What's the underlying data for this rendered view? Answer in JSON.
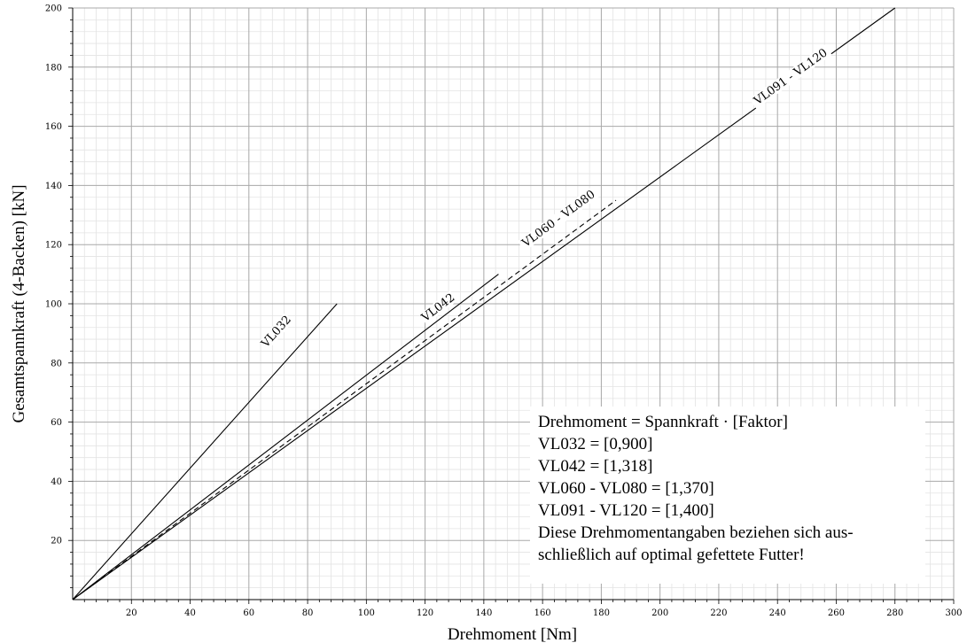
{
  "chart_data": {
    "type": "line",
    "xlabel": "Drehmoment [Nm]",
    "ylabel": "Gesamtspannkraft (4-Backen) [kN]",
    "xlim": [
      0,
      300
    ],
    "ylim": [
      0,
      200
    ],
    "x_ticks": [
      20,
      40,
      60,
      80,
      100,
      120,
      140,
      160,
      180,
      200,
      220,
      240,
      260,
      280,
      300
    ],
    "y_ticks": [
      20,
      40,
      60,
      80,
      100,
      120,
      140,
      160,
      180,
      200
    ],
    "grid": true,
    "minor_grid": true,
    "series": [
      {
        "name": "VL032",
        "style": "solid",
        "points": [
          [
            0,
            0
          ],
          [
            90,
            100
          ]
        ],
        "label_at": [
          70,
          90
        ]
      },
      {
        "name": "VL042",
        "style": "solid",
        "points": [
          [
            0,
            0
          ],
          [
            145,
            110
          ]
        ],
        "label_at": [
          125,
          98
        ]
      },
      {
        "name": "VL060 - VL080",
        "style": "dashed",
        "points": [
          [
            0,
            0
          ],
          [
            185,
            135
          ]
        ],
        "label_at": [
          166,
          128
        ]
      },
      {
        "name": "VL091 - VL120",
        "style": "solid",
        "points": [
          [
            0,
            0
          ],
          [
            280,
            200
          ]
        ],
        "label_at": [
          245,
          176
        ]
      }
    ],
    "annotation": [
      "Drehmoment = Spannkraft · [Faktor]",
      "VL032 = [0,900]",
      "VL042 = [1,318]",
      "VL060 - VL080 = [1,370]",
      "VL091 - VL120 = [1,400]",
      "Diese Drehmomentangaben beziehen sich aus-",
      "schließlich auf optimal gefettete Futter!"
    ]
  }
}
